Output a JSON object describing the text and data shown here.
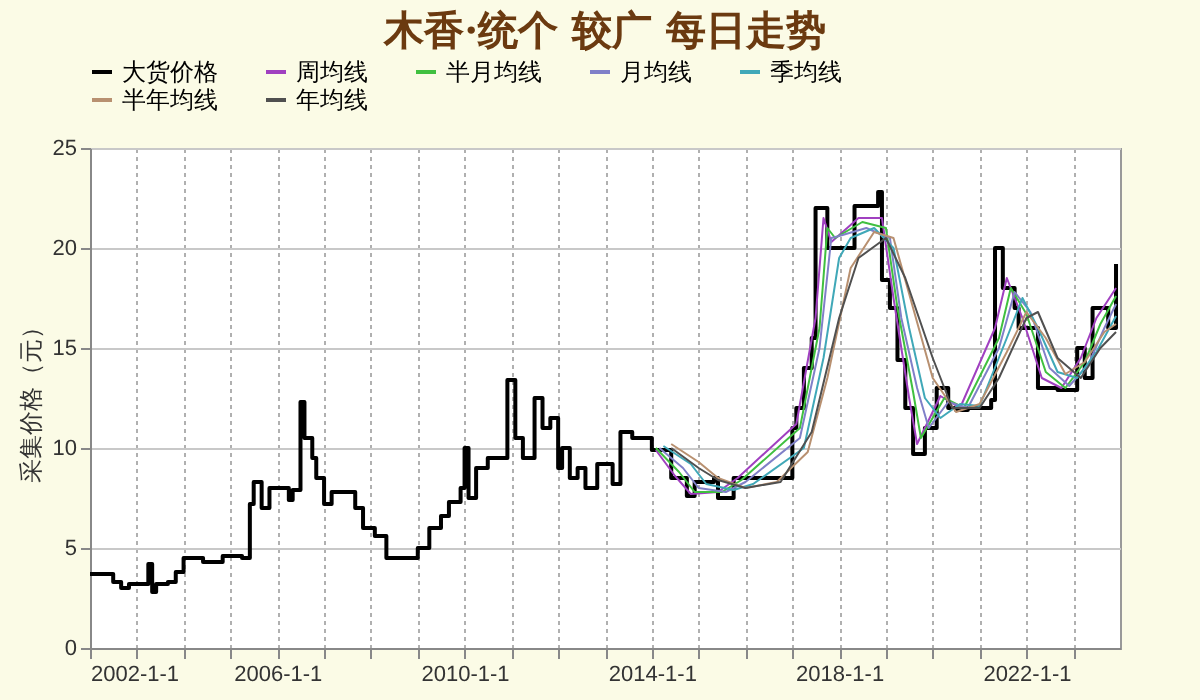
{
  "chart_data": {
    "type": "line",
    "title": "木香·统个 较广 每日走势",
    "ylabel": "采集价格（元）",
    "xlim": [
      "2002-01-01",
      "2024-01-01"
    ],
    "xticks": [
      {
        "value": "2002-01-01",
        "label": "2002-1-1"
      },
      {
        "value": "2003-01-01",
        "label": null
      },
      {
        "value": "2004-01-01",
        "label": null
      },
      {
        "value": "2005-01-01",
        "label": null
      },
      {
        "value": "2006-01-01",
        "label": "2006-1-1"
      },
      {
        "value": "2007-01-01",
        "label": null
      },
      {
        "value": "2008-01-01",
        "label": null
      },
      {
        "value": "2009-01-01",
        "label": null
      },
      {
        "value": "2010-01-01",
        "label": "2010-1-1"
      },
      {
        "value": "2011-01-01",
        "label": null
      },
      {
        "value": "2012-01-01",
        "label": null
      },
      {
        "value": "2013-01-01",
        "label": null
      },
      {
        "value": "2014-01-01",
        "label": "2014-1-1"
      },
      {
        "value": "2015-01-01",
        "label": null
      },
      {
        "value": "2016-01-01",
        "label": null
      },
      {
        "value": "2017-01-01",
        "label": null
      },
      {
        "value": "2018-01-01",
        "label": "2018-1-1"
      },
      {
        "value": "2019-01-01",
        "label": null
      },
      {
        "value": "2020-01-01",
        "label": null
      },
      {
        "value": "2021-01-01",
        "label": null
      },
      {
        "value": "2022-01-01",
        "label": "2022-1-1"
      },
      {
        "value": "2023-01-01",
        "label": null
      }
    ],
    "ylim": [
      0,
      25
    ],
    "yticks": [
      0,
      5,
      10,
      15,
      20,
      25
    ],
    "grid": true,
    "legend": "top",
    "marker": "none",
    "series": [
      {
        "name": "大货价格",
        "type": "step",
        "color": "#000000",
        "x": [
          "2002-01",
          "2002-07",
          "2002-09",
          "2002-11",
          "2003-04",
          "2003-05",
          "2003-06",
          "2003-09",
          "2003-11",
          "2004-01",
          "2004-06",
          "2004-11",
          "2005-04",
          "2005-06",
          "2005-07",
          "2005-09",
          "2005-11",
          "2006-04",
          "2006-05",
          "2006-07",
          "2006-08",
          "2006-10",
          "2006-11",
          "2007-01",
          "2007-03",
          "2007-09",
          "2007-11",
          "2008-02",
          "2008-05",
          "2009-01",
          "2009-04",
          "2009-07",
          "2009-09",
          "2009-12",
          "2010-01",
          "2010-02",
          "2010-04",
          "2010-07",
          "2010-12",
          "2011-02",
          "2011-04",
          "2011-07",
          "2011-09",
          "2011-11",
          "2012-01",
          "2012-02",
          "2012-04",
          "2012-06",
          "2012-08",
          "2012-11",
          "2013-03",
          "2013-05",
          "2013-08",
          "2014-01",
          "2014-06",
          "2014-10",
          "2014-12",
          "2015-05",
          "2015-06",
          "2015-10",
          "2017-01",
          "2017-02",
          "2017-04",
          "2017-06",
          "2017-07",
          "2017-10",
          "2018-05",
          "2018-11",
          "2018-12",
          "2019-02",
          "2019-04",
          "2019-06",
          "2019-08",
          "2019-11",
          "2020-02",
          "2020-05",
          "2020-07",
          "2020-10",
          "2021-04",
          "2021-05",
          "2021-07",
          "2021-10",
          "2021-11",
          "2022-04",
          "2022-09",
          "2023-02",
          "2023-04",
          "2023-06",
          "2023-10",
          "2023-12"
        ],
        "values": [
          3.7,
          3.3,
          3.0,
          3.2,
          4.2,
          2.8,
          3.2,
          3.3,
          3.8,
          4.5,
          4.3,
          4.6,
          4.5,
          7.2,
          8.3,
          7.0,
          8.0,
          7.4,
          7.9,
          12.3,
          10.5,
          9.5,
          8.5,
          7.2,
          7.8,
          7.0,
          6.0,
          5.6,
          4.5,
          5.0,
          6.0,
          6.6,
          7.3,
          8.0,
          10.0,
          7.5,
          9.0,
          9.5,
          13.4,
          10.5,
          9.5,
          12.5,
          11.0,
          11.5,
          9.0,
          10.0,
          8.5,
          9.0,
          8.0,
          9.2,
          8.2,
          10.8,
          10.5,
          9.9,
          8.5,
          7.6,
          8.3,
          8.5,
          7.5,
          8.5,
          11.0,
          12.0,
          14.0,
          15.5,
          22.0,
          20.0,
          22.1,
          22.8,
          18.4,
          17.0,
          14.4,
          12.0,
          9.7,
          11.0,
          13.0,
          12.0,
          11.9,
          12.0,
          12.4,
          20.0,
          18.0,
          17.0,
          16.0,
          13.0,
          12.9,
          15.0,
          13.5,
          17.0,
          16.0,
          19.2
        ]
      },
      {
        "name": "周均线",
        "type": "line",
        "color": "#a040c0",
        "x": [
          "2014-02",
          "2014-07",
          "2014-11",
          "2015-06",
          "2015-11",
          "2017-02",
          "2017-07",
          "2017-09",
          "2017-11",
          "2018-06",
          "2018-12",
          "2019-03",
          "2019-07",
          "2019-09",
          "2020-03",
          "2020-08",
          "2021-05",
          "2021-08",
          "2021-12",
          "2022-05",
          "2022-10",
          "2023-03",
          "2023-07",
          "2023-12"
        ],
        "values": [
          9.9,
          8.6,
          7.7,
          7.8,
          8.5,
          11.2,
          16.5,
          21.5,
          20.3,
          21.5,
          21.5,
          17.5,
          12.5,
          10.2,
          12.6,
          12.0,
          16.0,
          18.5,
          16.5,
          13.5,
          13.0,
          14.5,
          16.5,
          18.0
        ]
      },
      {
        "name": "半月均线",
        "type": "line",
        "color": "#40c040",
        "x": [
          "2014-02",
          "2014-08",
          "2014-12",
          "2015-07",
          "2015-12",
          "2017-03",
          "2017-08",
          "2017-10",
          "2017-12",
          "2018-07",
          "2019-01",
          "2019-04",
          "2019-08",
          "2019-10",
          "2020-04",
          "2020-09",
          "2021-06",
          "2021-09",
          "2022-01",
          "2022-06",
          "2022-11",
          "2023-04",
          "2023-08",
          "2023-12"
        ],
        "values": [
          10.0,
          8.8,
          7.8,
          7.8,
          8.4,
          11.0,
          16.0,
          21.0,
          20.5,
          21.3,
          21.0,
          17.0,
          12.8,
          10.5,
          12.5,
          12.0,
          15.5,
          18.0,
          16.7,
          13.8,
          13.0,
          14.3,
          16.2,
          17.6
        ]
      },
      {
        "name": "月均线",
        "type": "line",
        "color": "#8080c8",
        "x": [
          "2014-03",
          "2014-09",
          "2015-01",
          "2015-08",
          "2016-01",
          "2017-03",
          "2017-08",
          "2017-11",
          "2018-01",
          "2018-08",
          "2019-02",
          "2019-05",
          "2019-09",
          "2019-12",
          "2020-05",
          "2020-10",
          "2021-06",
          "2021-10",
          "2022-02",
          "2022-07",
          "2022-12",
          "2023-05",
          "2023-09",
          "2023-12"
        ],
        "values": [
          10.0,
          9.0,
          8.0,
          7.8,
          8.3,
          10.5,
          15.0,
          20.5,
          20.6,
          21.0,
          20.5,
          16.5,
          13.0,
          11.0,
          12.3,
          12.0,
          15.0,
          17.8,
          16.8,
          14.0,
          13.1,
          14.2,
          16.0,
          17.2
        ]
      },
      {
        "name": "季均线",
        "type": "line",
        "color": "#40a8b8",
        "x": [
          "2014-04",
          "2014-11",
          "2015-03",
          "2015-10",
          "2016-03",
          "2017-04",
          "2017-09",
          "2018-01",
          "2018-04",
          "2018-10",
          "2019-03",
          "2019-07",
          "2019-11",
          "2020-03",
          "2020-08",
          "2021-01",
          "2021-08",
          "2021-12",
          "2022-04",
          "2022-09",
          "2023-02",
          "2023-07",
          "2023-12"
        ],
        "values": [
          10.1,
          9.2,
          8.2,
          7.9,
          8.2,
          10.0,
          14.5,
          19.5,
          20.5,
          21.0,
          20.0,
          16.0,
          12.5,
          11.5,
          12.2,
          12.1,
          15.5,
          17.5,
          16.0,
          13.8,
          13.5,
          14.8,
          16.6
        ]
      },
      {
        "name": "半年均线",
        "type": "line",
        "color": "#b89070",
        "x": [
          "2014-06",
          "2015-01",
          "2015-06",
          "2016-01",
          "2016-09",
          "2017-05",
          "2017-10",
          "2018-04",
          "2018-10",
          "2019-03",
          "2019-08",
          "2020-01",
          "2020-07",
          "2021-01",
          "2021-08",
          "2022-01",
          "2022-06",
          "2022-11",
          "2023-04",
          "2023-09",
          "2023-12"
        ],
        "values": [
          10.2,
          9.3,
          8.5,
          8.0,
          8.3,
          9.8,
          13.5,
          19.0,
          20.8,
          20.5,
          17.0,
          13.5,
          11.8,
          12.2,
          14.8,
          16.8,
          15.5,
          13.7,
          14.3,
          15.8,
          16.2
        ]
      },
      {
        "name": "年均线",
        "type": "line",
        "color": "#505050",
        "x": [
          "2014-06",
          "2015-01",
          "2015-06",
          "2016-01",
          "2016-10",
          "2017-06",
          "2018-01",
          "2018-06",
          "2019-01",
          "2019-06",
          "2020-01",
          "2020-06",
          "2021-01",
          "2021-06",
          "2022-01",
          "2022-04",
          "2022-09",
          "2023-03",
          "2023-08",
          "2023-12"
        ],
        "values": [
          10.0,
          9.0,
          8.4,
          8.0,
          8.3,
          10.8,
          16.5,
          19.5,
          20.5,
          18.5,
          14.5,
          12.0,
          12.0,
          13.5,
          16.5,
          16.8,
          14.5,
          13.5,
          15.0,
          15.8
        ]
      }
    ]
  }
}
